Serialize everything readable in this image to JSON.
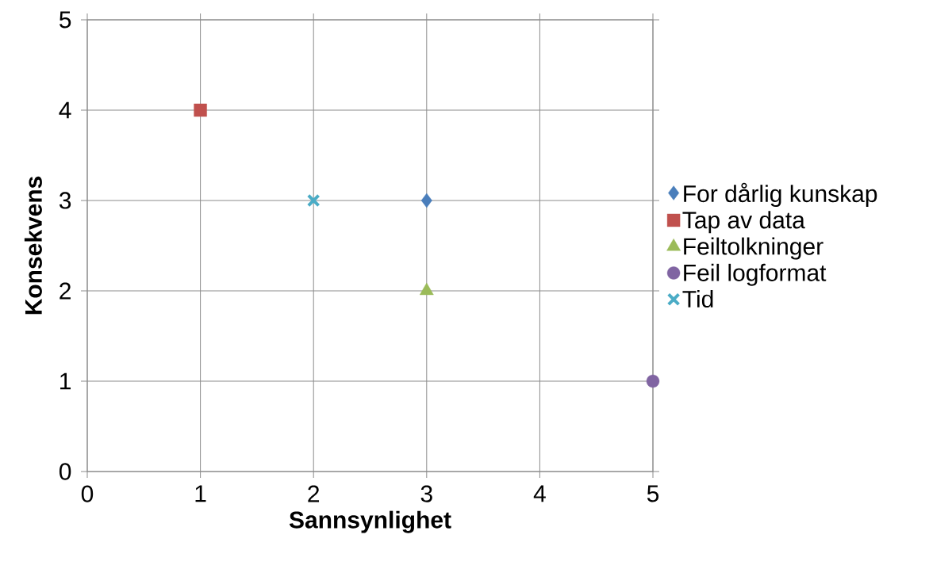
{
  "chart_data": {
    "type": "scatter",
    "xlabel": "Sannsynlighet",
    "ylabel": "Konsekvens",
    "xlim": [
      0,
      5
    ],
    "ylim": [
      0,
      5
    ],
    "xticks": [
      0,
      1,
      2,
      3,
      4,
      5
    ],
    "yticks": [
      0,
      1,
      2,
      3,
      4,
      5
    ],
    "grid": true,
    "legend": "right",
    "series": [
      {
        "name": "For dårlig kunskap",
        "color": "#4a7ebb",
        "marker": "diamond",
        "x": [
          3
        ],
        "values": [
          3
        ]
      },
      {
        "name": "Tap av data",
        "color": "#c0504d",
        "marker": "square",
        "x": [
          1
        ],
        "values": [
          4
        ]
      },
      {
        "name": "Feiltolkninger",
        "color": "#9bbb59",
        "marker": "triangle",
        "x": [
          3
        ],
        "values": [
          2
        ]
      },
      {
        "name": "Feil logformat",
        "color": "#8064a2",
        "marker": "circle",
        "x": [
          5
        ],
        "values": [
          1
        ]
      },
      {
        "name": "Tid",
        "color": "#4bacc6",
        "marker": "cross",
        "x": [
          2
        ],
        "values": [
          3
        ]
      }
    ]
  }
}
